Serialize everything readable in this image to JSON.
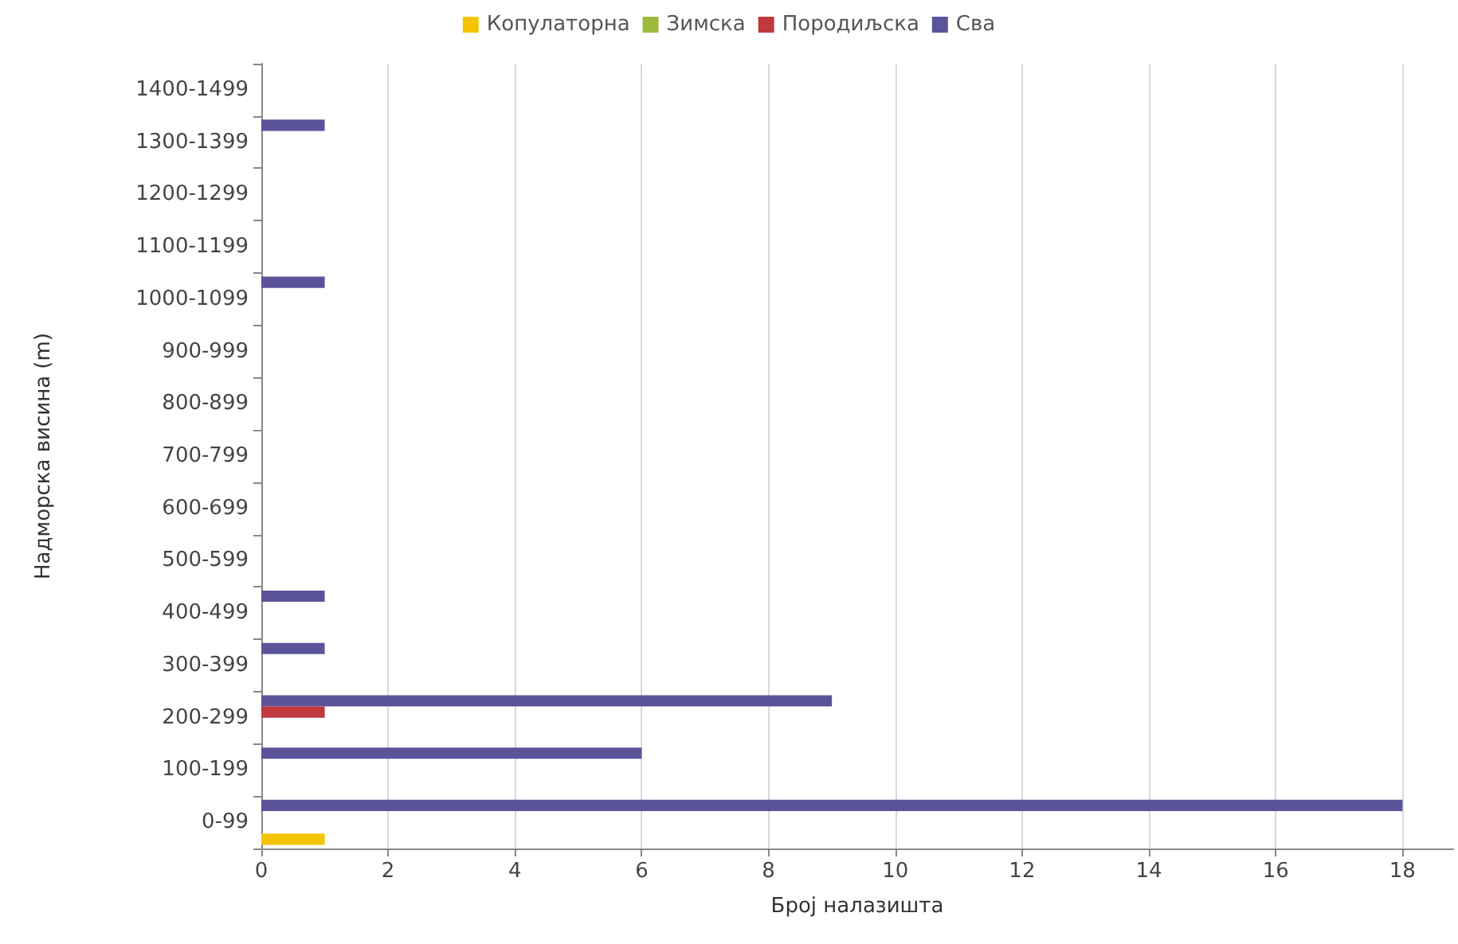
{
  "chart_data": {
    "type": "bar",
    "orientation": "horizontal",
    "xlabel": "Број налазишта",
    "ylabel": "Надморска висина (m)",
    "categories": [
      "1400-1499",
      "1300-1399",
      "1200-1299",
      "1100-1199",
      "1000-1099",
      "900-999",
      "800-899",
      "700-799",
      "600-699",
      "500-599",
      "400-499",
      "300-399",
      "200-299",
      "100-199",
      "0-99"
    ],
    "series": [
      {
        "name": "Копулаторна",
        "color": "#f5c400",
        "values": [
          0,
          0,
          0,
          0,
          0,
          0,
          0,
          0,
          0,
          0,
          0,
          0,
          0,
          0,
          1
        ]
      },
      {
        "name": "Зимска",
        "color": "#9cbb3b",
        "values": [
          0,
          0,
          0,
          0,
          0,
          0,
          0,
          0,
          0,
          0,
          0,
          0,
          0,
          0,
          0
        ]
      },
      {
        "name": "Породиљска",
        "color": "#c0393f",
        "values": [
          0,
          0,
          0,
          0,
          0,
          0,
          0,
          0,
          0,
          0,
          0,
          0,
          1,
          0,
          0
        ]
      },
      {
        "name": "Сва",
        "color": "#5b539a",
        "values": [
          0,
          1,
          0,
          0,
          1,
          0,
          0,
          0,
          0,
          0,
          1,
          1,
          9,
          6,
          18
        ]
      }
    ],
    "xlim": [
      0,
      18.8
    ],
    "xticks": [
      0,
      2,
      4,
      6,
      8,
      10,
      12,
      14,
      16,
      18
    ],
    "grid": "x",
    "legend": "top"
  }
}
